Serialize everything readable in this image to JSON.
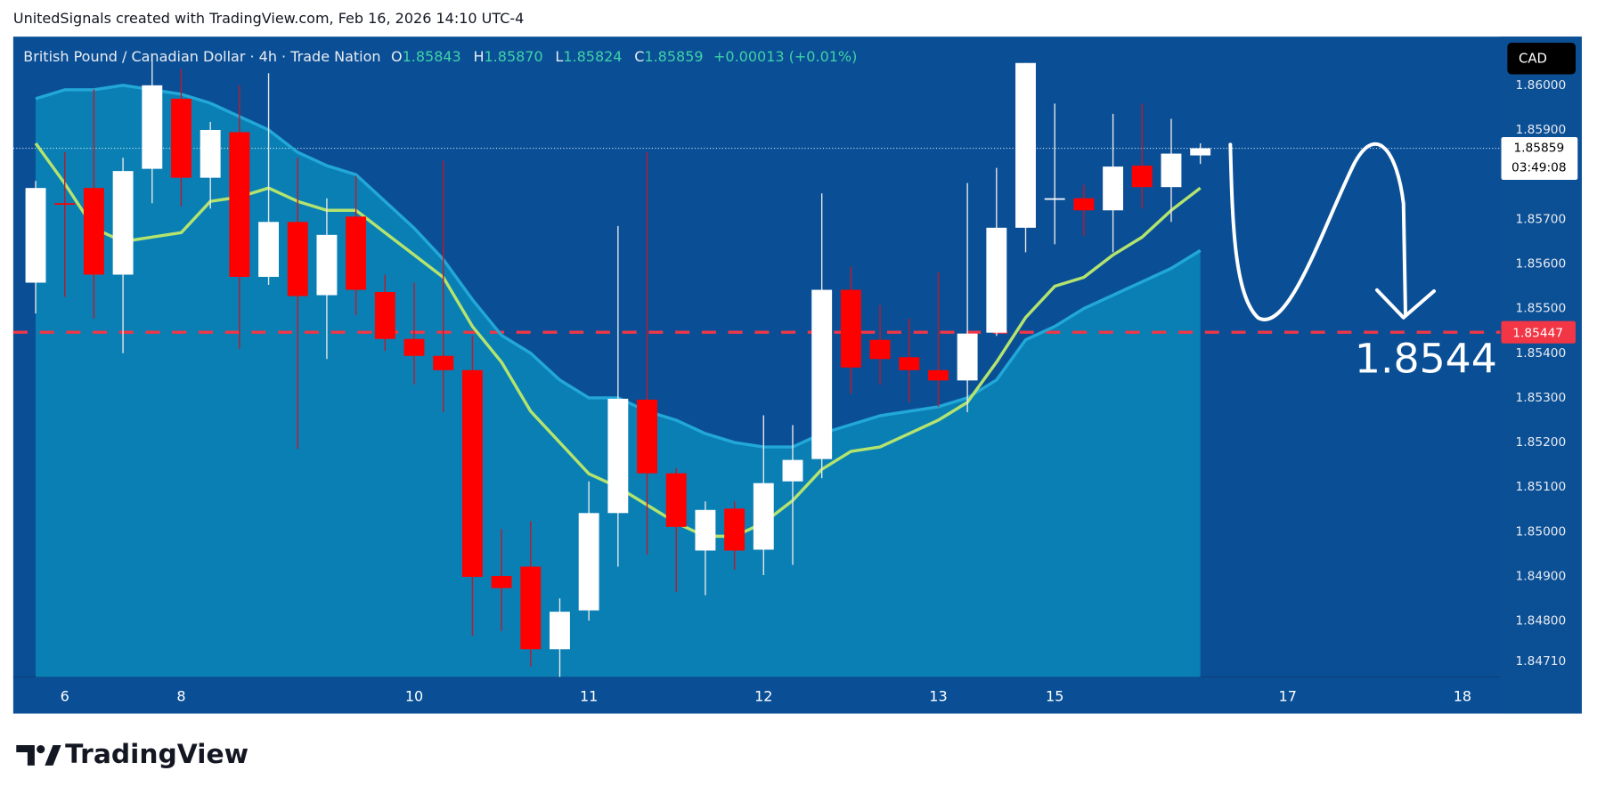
{
  "chart_data": {
    "type": "candlestick",
    "header": "UnitedSignals created with TradingView.com, Feb 16, 2026 14:10 UTC-4",
    "title": "British Pound / Canadian Dollar · 4h · Trade Nation",
    "ohlc_legend": [
      {
        "key": "O",
        "value": "1.85843"
      },
      {
        "key": "H",
        "value": "1.85870"
      },
      {
        "key": "L",
        "value": "1.85824"
      },
      {
        "key": "C",
        "value": "1.85859"
      }
    ],
    "change": "+0.00013 (+0.01%)",
    "currency": "CAD",
    "brand": "TradingView",
    "up_color": "#ffffff",
    "down_color": "#ff0000",
    "open": [
      1.85558,
      1.85736,
      1.8577,
      1.85576,
      1.85813,
      1.8597,
      1.85793,
      1.85895,
      1.85571,
      1.85694,
      1.8553,
      1.85706,
      1.85537,
      1.85432,
      1.85394,
      1.85362,
      1.84901,
      1.84922,
      1.84737,
      1.84824,
      1.85042,
      1.85296,
      1.85131,
      1.84958,
      1.85052,
      1.8496,
      1.85113,
      1.85163,
      1.85542,
      1.8543,
      1.85391,
      1.85362,
      1.85339,
      1.85446,
      1.85681,
      1.85745,
      1.85747,
      1.8572,
      1.8582,
      1.85772,
      1.85843
    ],
    "high": [
      1.85786,
      1.8585,
      1.85991,
      1.85838,
      1.86066,
      1.86036,
      1.85918,
      1.86,
      1.86027,
      1.85838,
      1.85747,
      1.85797,
      1.85576,
      1.85558,
      1.85831,
      1.85439,
      1.85006,
      1.85024,
      1.84851,
      1.85113,
      1.85685,
      1.8585,
      1.85143,
      1.85068,
      1.85068,
      1.85261,
      1.85239,
      1.85758,
      1.85594,
      1.85508,
      1.85478,
      1.85581,
      1.85781,
      1.85815,
      1.8605,
      1.85959,
      1.85777,
      1.85936,
      1.85959,
      1.85925,
      1.8587
    ],
    "low": [
      1.85489,
      1.85526,
      1.85478,
      1.854,
      1.85736,
      1.85729,
      1.85724,
      1.8541,
      1.85553,
      1.85186,
      1.85387,
      1.85485,
      1.85405,
      1.8533,
      1.85268,
      1.84767,
      1.84778,
      1.84698,
      1.84675,
      1.84801,
      1.84922,
      1.84949,
      1.84865,
      1.84858,
      1.84915,
      1.84903,
      1.84926,
      1.8512,
      1.85309,
      1.8533,
      1.85291,
      1.8528,
      1.85268,
      1.85439,
      1.85626,
      1.85644,
      1.85663,
      1.85626,
      1.85724,
      1.85694,
      1.85824
    ],
    "close": [
      1.8577,
      1.85734,
      1.85576,
      1.85808,
      1.86,
      1.85793,
      1.859,
      1.85571,
      1.85694,
      1.85528,
      1.85665,
      1.85542,
      1.85432,
      1.85394,
      1.85362,
      1.84899,
      1.84874,
      1.84737,
      1.84821,
      1.85042,
      1.85298,
      1.85131,
      1.85011,
      1.85049,
      1.84958,
      1.85109,
      1.85161,
      1.85542,
      1.85368,
      1.85387,
      1.85362,
      1.85339,
      1.85444,
      1.85681,
      1.8605,
      1.85747,
      1.8572,
      1.85818,
      1.85772,
      1.85847,
      1.85859
    ],
    "overlays": [
      {
        "color": "#22a8d8",
        "fill": "#0a86b8",
        "values": [
          1.8597,
          1.8599,
          1.8599,
          1.86,
          1.8599,
          1.8598,
          1.8596,
          1.8593,
          1.859,
          1.8585,
          1.8582,
          1.858,
          1.8574,
          1.8568,
          1.8561,
          1.8552,
          1.8544,
          1.854,
          1.8534,
          1.853,
          1.853,
          1.8527,
          1.8525,
          1.8522,
          1.852,
          1.8519,
          1.8519,
          1.8522,
          1.8524,
          1.8526,
          1.8527,
          1.8528,
          1.853,
          1.8534,
          1.8543,
          1.8546,
          1.855,
          1.8553,
          1.8556,
          1.8559,
          1.8563
        ]
      },
      {
        "color": "#b4e46e",
        "values": [
          1.8587,
          1.8578,
          1.8568,
          1.8565,
          1.8566,
          1.8567,
          1.8574,
          1.8575,
          1.8577,
          1.8574,
          1.8572,
          1.8572,
          1.8567,
          1.8562,
          1.8557,
          1.8546,
          1.8538,
          1.8527,
          1.852,
          1.8513,
          1.851,
          1.8506,
          1.8502,
          1.8499,
          1.8499,
          1.8502,
          1.8507,
          1.8514,
          1.8518,
          1.8519,
          1.8522,
          1.8525,
          1.8529,
          1.8538,
          1.8548,
          1.8555,
          1.8557,
          1.8562,
          1.8566,
          1.8572,
          1.8577
        ]
      }
    ],
    "hline": {
      "value": 1.85447,
      "label": "1.85447",
      "color": "#f23645"
    },
    "last_price": {
      "value": 1.85859,
      "label": "1.85859",
      "countdown": "03:49:08"
    },
    "annotation": "1.8544",
    "xlim": [
      -0.77,
      50.3
    ],
    "xticks": [
      {
        "value": 1,
        "label": "6"
      },
      {
        "value": 5,
        "label": "8"
      },
      {
        "value": 13,
        "label": "10"
      },
      {
        "value": 19,
        "label": "11"
      },
      {
        "value": 25,
        "label": "12"
      },
      {
        "value": 31,
        "label": "13"
      },
      {
        "value": 35,
        "label": "15"
      },
      {
        "value": 43,
        "label": "17"
      },
      {
        "value": 49,
        "label": "18"
      }
    ],
    "ylim": [
      1.84675,
      1.86109
    ],
    "yticks": [
      {
        "value": 1.86,
        "label": "1.86000"
      },
      {
        "value": 1.859,
        "label": "1.85900"
      },
      {
        "value": 1.857,
        "label": "1.85700"
      },
      {
        "value": 1.856,
        "label": "1.85600"
      },
      {
        "value": 1.855,
        "label": "1.85500"
      },
      {
        "value": 1.854,
        "label": "1.85400"
      },
      {
        "value": 1.853,
        "label": "1.85300"
      },
      {
        "value": 1.852,
        "label": "1.85200"
      },
      {
        "value": 1.851,
        "label": "1.85100"
      },
      {
        "value": 1.85,
        "label": "1.85000"
      },
      {
        "value": 1.849,
        "label": "1.84900"
      },
      {
        "value": 1.848,
        "label": "1.84800"
      },
      {
        "value": 1.8471,
        "label": "1.84710"
      }
    ],
    "grid": false
  }
}
